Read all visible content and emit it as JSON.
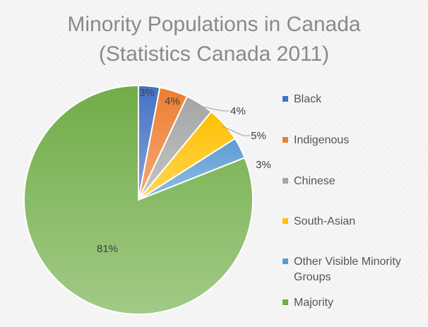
{
  "chart_data": {
    "type": "pie",
    "title": "Minority Populations in Canada",
    "subtitle": "(Statistics Canada 2011)",
    "legend_position": "right",
    "slices": [
      {
        "name": "Black",
        "value": 3,
        "label": "3%",
        "color": "#4472c4"
      },
      {
        "name": "Indigenous",
        "value": 4,
        "label": "4%",
        "color": "#ed7d31"
      },
      {
        "name": "Chinese",
        "value": 4,
        "label": "4%",
        "color": "#a5a5a5"
      },
      {
        "name": "South-Asian",
        "value": 5,
        "label": "5%",
        "color": "#ffc000"
      },
      {
        "name": "Other Visible Minority Groups",
        "value": 3,
        "label": "3%",
        "color": "#5b9bd5"
      },
      {
        "name": "Majority",
        "value": 81,
        "label": "81%",
        "color": "#70ad47"
      }
    ]
  }
}
